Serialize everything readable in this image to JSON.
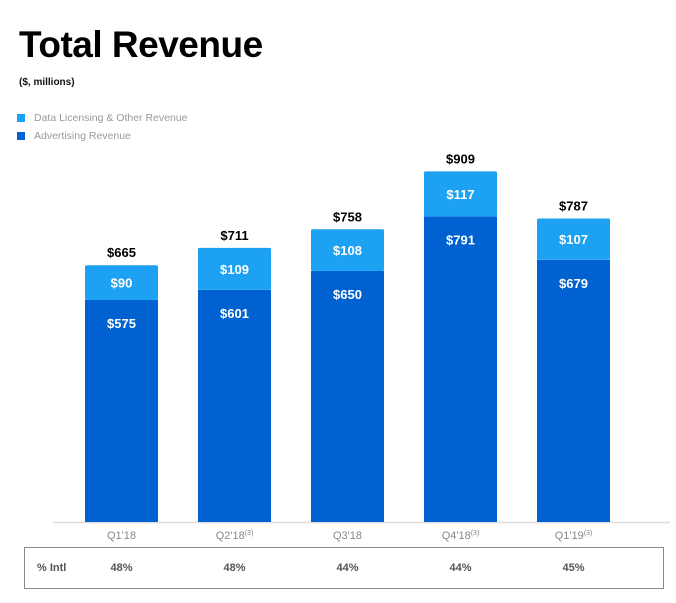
{
  "header": {
    "title": "Total Revenue",
    "subtitle": "($, millions)"
  },
  "colors": {
    "data_licensing": "#1da1f2",
    "advertising": "#0062d1",
    "axis": "#dddddd",
    "label_dark": "#000000",
    "label_light": "#ffffff",
    "tick": "#888888"
  },
  "chart_data": {
    "type": "bar",
    "stacked": true,
    "title": "Total Revenue",
    "subtitle": "($, millions)",
    "xlabel": "",
    "ylabel": "",
    "ylim": [
      0,
      909
    ],
    "grid": false,
    "legend_position": "top-left",
    "categories": [
      "Q1'18",
      "Q2'18",
      "Q3'18",
      "Q4'18",
      "Q1'19"
    ],
    "category_footnotes": [
      "",
      "(3)",
      "",
      "(3)",
      "(3)"
    ],
    "series": [
      {
        "name": "Advertising Revenue",
        "values": [
          575,
          601,
          650,
          791,
          679
        ],
        "labels": [
          "$575",
          "$601",
          "$650",
          "$791",
          "$679"
        ]
      },
      {
        "name": "Data Licensing & Other Revenue",
        "values": [
          90,
          109,
          108,
          117,
          107
        ],
        "labels": [
          "$90",
          "$109",
          "$108",
          "$117",
          "$107"
        ]
      }
    ],
    "totals": [
      665,
      711,
      758,
      909,
      787
    ],
    "total_labels": [
      "$665",
      "$711",
      "$758",
      "$909",
      "$787"
    ]
  },
  "legend": [
    {
      "label": "Data Licensing & Other Revenue",
      "color": "#1da1f2"
    },
    {
      "label": "Advertising Revenue",
      "color": "#0062d1"
    }
  ],
  "intl_table": {
    "label": "% Intl",
    "values": [
      "48%",
      "48%",
      "44%",
      "44%",
      "45%"
    ]
  }
}
